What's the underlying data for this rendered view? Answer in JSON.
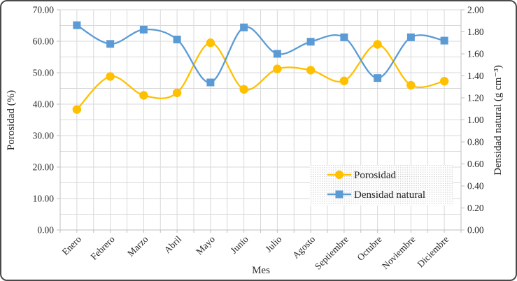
{
  "chart_data": {
    "type": "line",
    "title": "",
    "categories": [
      "Enero",
      "Febrero",
      "Marzo",
      "Abril",
      "Mayo",
      "Junio",
      "Julio",
      "Agosto",
      "Septiembre",
      "Octubre",
      "Noviembre",
      "Diciembre"
    ],
    "series": [
      {
        "name": "Porosidad",
        "axis": "left",
        "color": "#FFC000",
        "marker": "circle",
        "smooth": true,
        "values": [
          38.3,
          48.8,
          42.8,
          43.6,
          59.5,
          44.7,
          51.2,
          50.8,
          47.4,
          59.0,
          46.0,
          47.3
        ]
      },
      {
        "name": "Densidad natural",
        "axis": "right",
        "color": "#5B9BD5",
        "marker": "square",
        "smooth": true,
        "values": [
          1.86,
          1.69,
          1.82,
          1.73,
          1.34,
          1.84,
          1.6,
          1.71,
          1.75,
          1.38,
          1.75,
          1.72
        ]
      }
    ],
    "x_axis": {
      "title": "Mes"
    },
    "left_axis": {
      "title": "Porosidad (%)",
      "min": 0,
      "max": 70,
      "major_step": 10,
      "minor_step": 5,
      "tick_labels": [
        "0.00",
        "10.00",
        "20.00",
        "30.00",
        "40.00",
        "50.00",
        "60.00",
        "70.00"
      ]
    },
    "right_axis": {
      "title": "Densidad natural (g cm⁻³)",
      "min": 0,
      "max": 2,
      "major_step": 0.2,
      "tick_labels": [
        "0.00",
        "0.20",
        "0.40",
        "0.60",
        "0.80",
        "1.00",
        "1.20",
        "1.40",
        "1.60",
        "1.80",
        "2.00"
      ]
    },
    "legend": {
      "position": "inside-right",
      "background": "dotted",
      "entries": [
        "Porosidad",
        "Densidad natural"
      ]
    },
    "grid": true,
    "colors": {
      "grid": "#D9D9D9",
      "axis": "#BFBFBF",
      "text": "#262626",
      "series_yellow": "#FFC000",
      "series_blue": "#5B9BD5"
    }
  }
}
